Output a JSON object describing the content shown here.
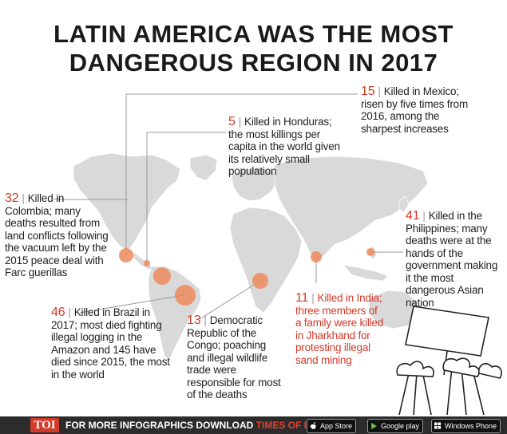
{
  "title": {
    "line1": "LATIN AMERICA WAS THE MOST",
    "line2": "DANGEROUS REGION IN 2017"
  },
  "annotations": {
    "mexico": {
      "number": "15",
      "text": "Killed in Mexico; risen by five times from 2016, among the sharpest increases"
    },
    "honduras": {
      "number": "5",
      "text": "Killed in Honduras; the most killings per capita in the world given its relatively small population"
    },
    "colombia": {
      "number": "32",
      "text": "Killed in Colombia; many deaths resulted from land conflicts following the vacuum left by the 2015 peace deal with Farc guerillas"
    },
    "philippines": {
      "number": "41",
      "text": "Killed in the Philippines; many deaths were at the hands of the government making it the most dangerous Asian nation"
    },
    "india": {
      "number": "11",
      "text": "Killed in India; three members of a family were killed in Jharkhand for protesting illegal sand mining"
    },
    "brazil": {
      "number": "46",
      "text": "Killed in Brazil in 2017; most died fighting illegal logging in the Amazon and 145 have died since 2015, the most in the world"
    },
    "congo": {
      "number": "13",
      "text": "Democratic Republic of the Congo; poaching and illegal wildlife trade were responsible for most of the deaths"
    }
  },
  "footer": {
    "logo": "TOI",
    "text": "FOR MORE  INFOGRAPHICS DOWNLOAD",
    "app": "TIMES OF INDIA APP",
    "store1": "App Store",
    "store2": "Google play",
    "store3": "Windows Phone"
  },
  "colors": {
    "accent": "#d23a2a",
    "bubble": "#ee8a5e",
    "land": "#d9d9d9"
  }
}
